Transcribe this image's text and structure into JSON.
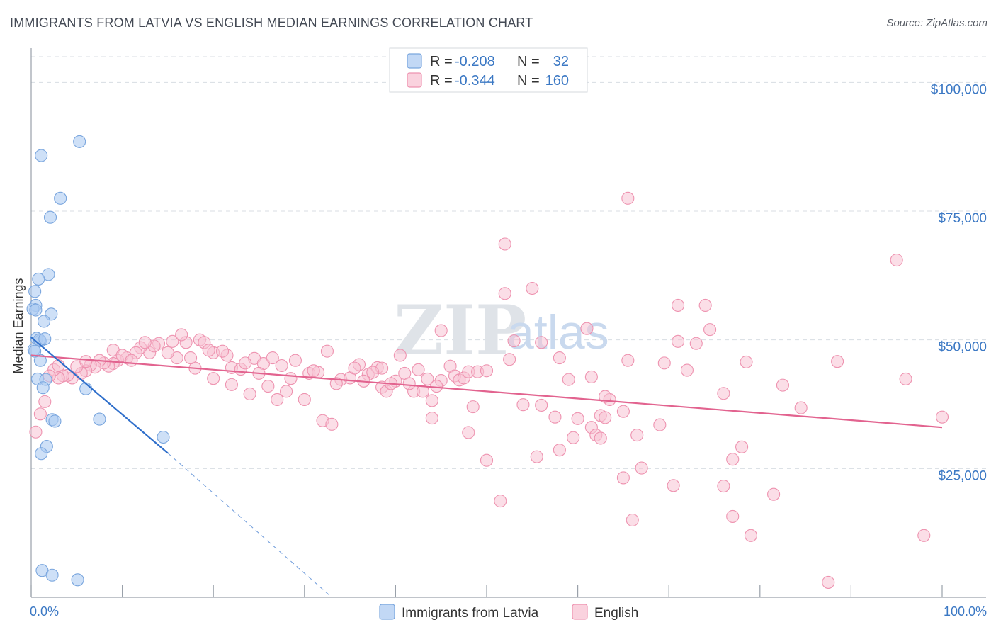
{
  "title": "IMMIGRANTS FROM LATVIA VS ENGLISH MEDIAN EARNINGS CORRELATION CHART",
  "source": "Source: ZipAtlas.com",
  "watermark": {
    "zip": "ZIP",
    "atlas": "atlas"
  },
  "colors": {
    "latvia_fill": "#aecbf2",
    "latvia_stroke": "#7aa6de",
    "latvia_line": "#2f6fcb",
    "english_fill": "#f8c3d3",
    "english_stroke": "#ee93b0",
    "english_line": "#e2638f",
    "tick_label": "#3b78c4",
    "grid": "#d8dde3"
  },
  "legend": {
    "rows": [
      {
        "r_label": "R = ",
        "r_value": "-0.208",
        "n_label": "N = ",
        "n_value": "32"
      },
      {
        "r_label": "R = ",
        "r_value": "-0.344",
        "n_label": "N = ",
        "n_value": "160"
      }
    ]
  },
  "bottom_legend": [
    "Immigrants from Latvia",
    "English"
  ],
  "chart_data": {
    "type": "scatter",
    "title": "IMMIGRANTS FROM LATVIA VS ENGLISH MEDIAN EARNINGS CORRELATION CHART",
    "xlabel": "",
    "ylabel": "Median Earnings",
    "xlim": [
      0,
      100
    ],
    "ylim": [
      0,
      105000
    ],
    "x_tick_labels": [
      "0.0%",
      "100.0%"
    ],
    "y_ticks": [
      25000,
      50000,
      75000,
      100000
    ],
    "y_tick_labels": [
      "$25,000",
      "$50,000",
      "$75,000",
      "$100,000"
    ],
    "grid": true,
    "legend_position": "top-center",
    "series": [
      {
        "name": "Immigrants from Latvia",
        "r": -0.208,
        "n": 32,
        "trend": {
          "x": [
            0.0,
            15.0
          ],
          "y": [
            50500,
            28000
          ],
          "extrapolated_to": [
            33.0,
            0
          ]
        },
        "points": [
          [
            5.3,
            88500
          ],
          [
            1.1,
            85800
          ],
          [
            3.2,
            77500
          ],
          [
            2.1,
            73800
          ],
          [
            1.9,
            62700
          ],
          [
            0.8,
            61800
          ],
          [
            0.4,
            59400
          ],
          [
            0.5,
            56700
          ],
          [
            0.2,
            56000
          ],
          [
            2.2,
            55000
          ],
          [
            1.4,
            53600
          ],
          [
            0.6,
            50300
          ],
          [
            1.0,
            49800
          ],
          [
            0.3,
            48100
          ],
          [
            1.0,
            46000
          ],
          [
            0.7,
            42400
          ],
          [
            1.6,
            42300
          ],
          [
            1.3,
            40700
          ],
          [
            6.0,
            40500
          ],
          [
            2.3,
            34500
          ],
          [
            2.6,
            34200
          ],
          [
            7.5,
            34600
          ],
          [
            14.5,
            31100
          ],
          [
            1.7,
            29300
          ],
          [
            1.1,
            27900
          ],
          [
            1.2,
            5200
          ],
          [
            2.3,
            4300
          ],
          [
            5.1,
            3400
          ],
          [
            0.9,
            50000
          ],
          [
            0.5,
            55800
          ],
          [
            1.5,
            50200
          ],
          [
            0.4,
            47800
          ]
        ]
      },
      {
        "name": "English",
        "r": -0.344,
        "n": 160,
        "trend": {
          "x": [
            0.0,
            100.0
          ],
          "y": [
            47000,
            33000
          ]
        },
        "points": [
          [
            65.5,
            77500
          ],
          [
            52.0,
            68600
          ],
          [
            95.0,
            65500
          ],
          [
            55.0,
            60000
          ],
          [
            52.0,
            59000
          ],
          [
            71.0,
            56700
          ],
          [
            74.0,
            56700
          ],
          [
            74.5,
            52000
          ],
          [
            45.0,
            51800
          ],
          [
            61.0,
            52200
          ],
          [
            53.0,
            49800
          ],
          [
            56.0,
            49500
          ],
          [
            71.0,
            49700
          ],
          [
            73.0,
            49300
          ],
          [
            58.0,
            46500
          ],
          [
            65.5,
            46000
          ],
          [
            69.5,
            45500
          ],
          [
            78.5,
            45700
          ],
          [
            88.5,
            45800
          ],
          [
            52.5,
            46200
          ],
          [
            72.0,
            44100
          ],
          [
            59.0,
            42300
          ],
          [
            61.5,
            42800
          ],
          [
            82.5,
            41200
          ],
          [
            96.0,
            42400
          ],
          [
            76.0,
            39600
          ],
          [
            63.5,
            38400
          ],
          [
            65.0,
            36100
          ],
          [
            84.5,
            36800
          ],
          [
            56.0,
            37300
          ],
          [
            48.5,
            37000
          ],
          [
            54.0,
            37400
          ],
          [
            57.5,
            35000
          ],
          [
            60.0,
            34700
          ],
          [
            61.5,
            33000
          ],
          [
            62.5,
            35300
          ],
          [
            63.0,
            34900
          ],
          [
            69.0,
            33500
          ],
          [
            59.5,
            31000
          ],
          [
            62.0,
            31500
          ],
          [
            62.5,
            30900
          ],
          [
            58.0,
            28600
          ],
          [
            55.5,
            27300
          ],
          [
            66.5,
            31500
          ],
          [
            67.0,
            25100
          ],
          [
            77.0,
            26800
          ],
          [
            78.0,
            29200
          ],
          [
            50.0,
            26600
          ],
          [
            65.0,
            23200
          ],
          [
            70.5,
            21700
          ],
          [
            76.0,
            21600
          ],
          [
            81.5,
            20000
          ],
          [
            51.5,
            18700
          ],
          [
            66.0,
            15000
          ],
          [
            77.0,
            15700
          ],
          [
            79.0,
            12000
          ],
          [
            98.0,
            12000
          ],
          [
            87.5,
            2900
          ],
          [
            100.0,
            35000
          ],
          [
            63.0,
            39000
          ],
          [
            48.0,
            32000
          ],
          [
            44.0,
            34800
          ],
          [
            32.0,
            34300
          ],
          [
            33.0,
            33600
          ],
          [
            30.0,
            38400
          ],
          [
            27.0,
            38400
          ],
          [
            28.0,
            40000
          ],
          [
            26.0,
            41000
          ],
          [
            24.0,
            39500
          ],
          [
            22.0,
            41300
          ],
          [
            20.0,
            42500
          ],
          [
            18.0,
            44500
          ],
          [
            16.0,
            46500
          ],
          [
            15.5,
            49700
          ],
          [
            17.0,
            49500
          ],
          [
            16.5,
            51000
          ],
          [
            18.5,
            50000
          ],
          [
            19.0,
            49500
          ],
          [
            20.0,
            47500
          ],
          [
            21.5,
            47000
          ],
          [
            22.0,
            44600
          ],
          [
            23.0,
            44300
          ],
          [
            24.5,
            46400
          ],
          [
            25.5,
            45400
          ],
          [
            26.5,
            46500
          ],
          [
            28.5,
            42500
          ],
          [
            30.5,
            43500
          ],
          [
            31.5,
            43700
          ],
          [
            32.5,
            47800
          ],
          [
            34.0,
            42300
          ],
          [
            35.0,
            42600
          ],
          [
            36.0,
            45200
          ],
          [
            37.0,
            43300
          ],
          [
            38.0,
            44600
          ],
          [
            38.5,
            40800
          ],
          [
            39.0,
            40000
          ],
          [
            40.0,
            42000
          ],
          [
            40.5,
            47000
          ],
          [
            41.0,
            43500
          ],
          [
            42.0,
            40000
          ],
          [
            43.0,
            40000
          ],
          [
            43.5,
            42400
          ],
          [
            44.0,
            38200
          ],
          [
            45.0,
            42100
          ],
          [
            46.0,
            44900
          ],
          [
            46.5,
            43000
          ],
          [
            47.0,
            42200
          ],
          [
            47.5,
            42600
          ],
          [
            48.0,
            43800
          ],
          [
            49.0,
            43800
          ],
          [
            50.0,
            44000
          ],
          [
            38.5,
            44500
          ],
          [
            14.0,
            49300
          ],
          [
            13.0,
            47500
          ],
          [
            12.0,
            48500
          ],
          [
            11.5,
            47500
          ],
          [
            10.5,
            46500
          ],
          [
            9.5,
            46000
          ],
          [
            9.0,
            45400
          ],
          [
            8.5,
            44900
          ],
          [
            8.0,
            45500
          ],
          [
            7.5,
            46000
          ],
          [
            7.0,
            44700
          ],
          [
            6.5,
            45100
          ],
          [
            6.0,
            44000
          ],
          [
            5.5,
            43500
          ],
          [
            5.0,
            44800
          ],
          [
            4.5,
            42600
          ],
          [
            4.0,
            43100
          ],
          [
            3.5,
            43000
          ],
          [
            3.0,
            42600
          ],
          [
            2.5,
            44200
          ],
          [
            2.0,
            43000
          ],
          [
            1.5,
            38000
          ],
          [
            1.0,
            35600
          ],
          [
            0.5,
            32100
          ],
          [
            13.5,
            48800
          ],
          [
            15.0,
            47500
          ],
          [
            17.5,
            46500
          ],
          [
            19.5,
            48000
          ],
          [
            21.0,
            47800
          ],
          [
            23.5,
            45500
          ],
          [
            25.0,
            43500
          ],
          [
            27.5,
            45000
          ],
          [
            29.0,
            46000
          ],
          [
            31.0,
            44000
          ],
          [
            33.5,
            41500
          ],
          [
            35.5,
            44500
          ],
          [
            36.5,
            42000
          ],
          [
            37.5,
            43700
          ],
          [
            39.5,
            41500
          ],
          [
            41.5,
            41500
          ],
          [
            42.5,
            44200
          ],
          [
            44.5,
            41000
          ],
          [
            9.0,
            48000
          ],
          [
            10.0,
            47000
          ],
          [
            11.0,
            46000
          ],
          [
            6.0,
            45800
          ],
          [
            3.0,
            45000
          ],
          [
            12.5,
            49500
          ]
        ]
      }
    ]
  }
}
